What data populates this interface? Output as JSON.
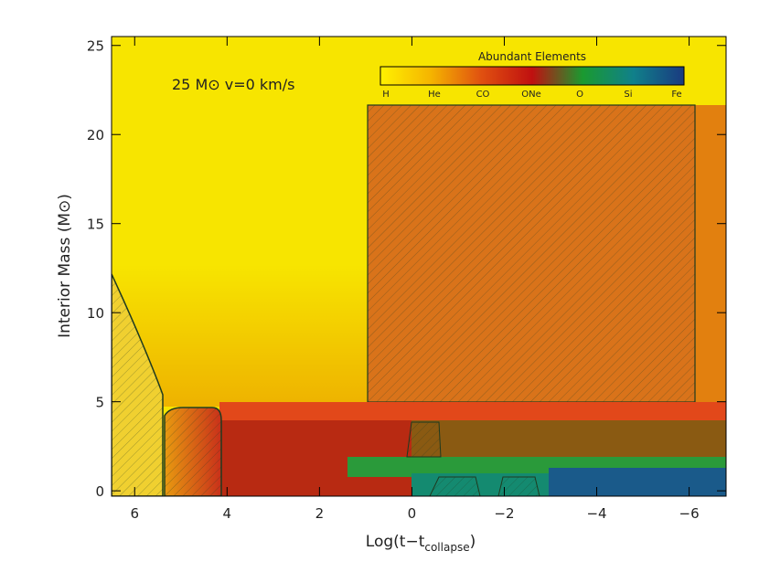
{
  "chart_data": {
    "type": "kippenhahn",
    "annotation": "25 M⊙  v=0 km/s",
    "xlabel": {
      "main": "Log(t−t",
      "sub": "collapse",
      "end": ")"
    },
    "ylabel": "Interior Mass (M⊙)",
    "xlim": [
      6.5,
      -6.8
    ],
    "ylim": [
      -0.3,
      25.5
    ],
    "xticks": [
      6,
      4,
      2,
      0,
      {
        "value": -2,
        "label": "−2"
      },
      {
        "value": -4,
        "label": "−4"
      },
      {
        "value": -6,
        "label": "−6"
      }
    ],
    "yticks": [
      0,
      5,
      10,
      15,
      20,
      25
    ],
    "colorbar": {
      "title": "Abundant Elements",
      "labels": [
        "H",
        "He",
        "CO",
        "ONe",
        "O",
        "Si",
        "Fe"
      ],
      "colors": [
        "#fff200",
        "#f5b400",
        "#e05010",
        "#c01010",
        "#1a9a30",
        "#10808a",
        "#1a3a80"
      ]
    }
  }
}
